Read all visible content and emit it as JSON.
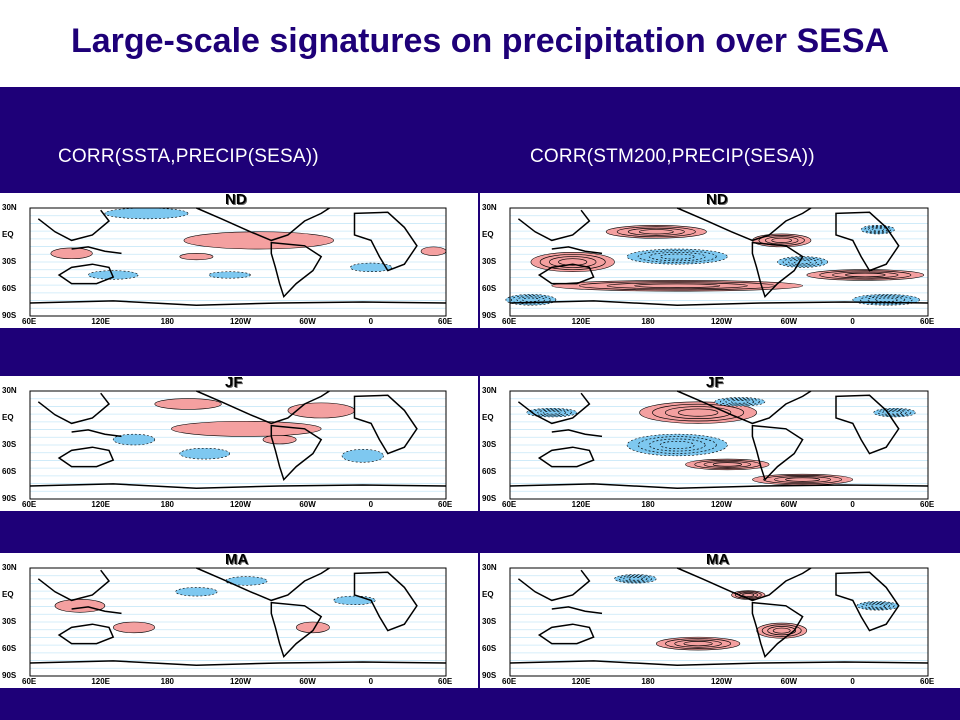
{
  "title": "Large-scale signatures on precipitation over SESA",
  "columns": [
    {
      "header": "CORR(SSTA,PRECIP(SESA))"
    },
    {
      "header": "CORR(STM200,PRECIP(SESA))"
    }
  ],
  "seasons": [
    "ND",
    "JF",
    "MA"
  ],
  "lat_labels": [
    "30N",
    "EQ",
    "30S",
    "60S",
    "90S"
  ],
  "lon_labels": [
    "60E",
    "120E",
    "180",
    "120W",
    "60W",
    "0",
    "60E"
  ],
  "colors": {
    "positive": "#f4a0a0",
    "negative": "#7ec8f0",
    "banner": "#1e0078"
  }
}
